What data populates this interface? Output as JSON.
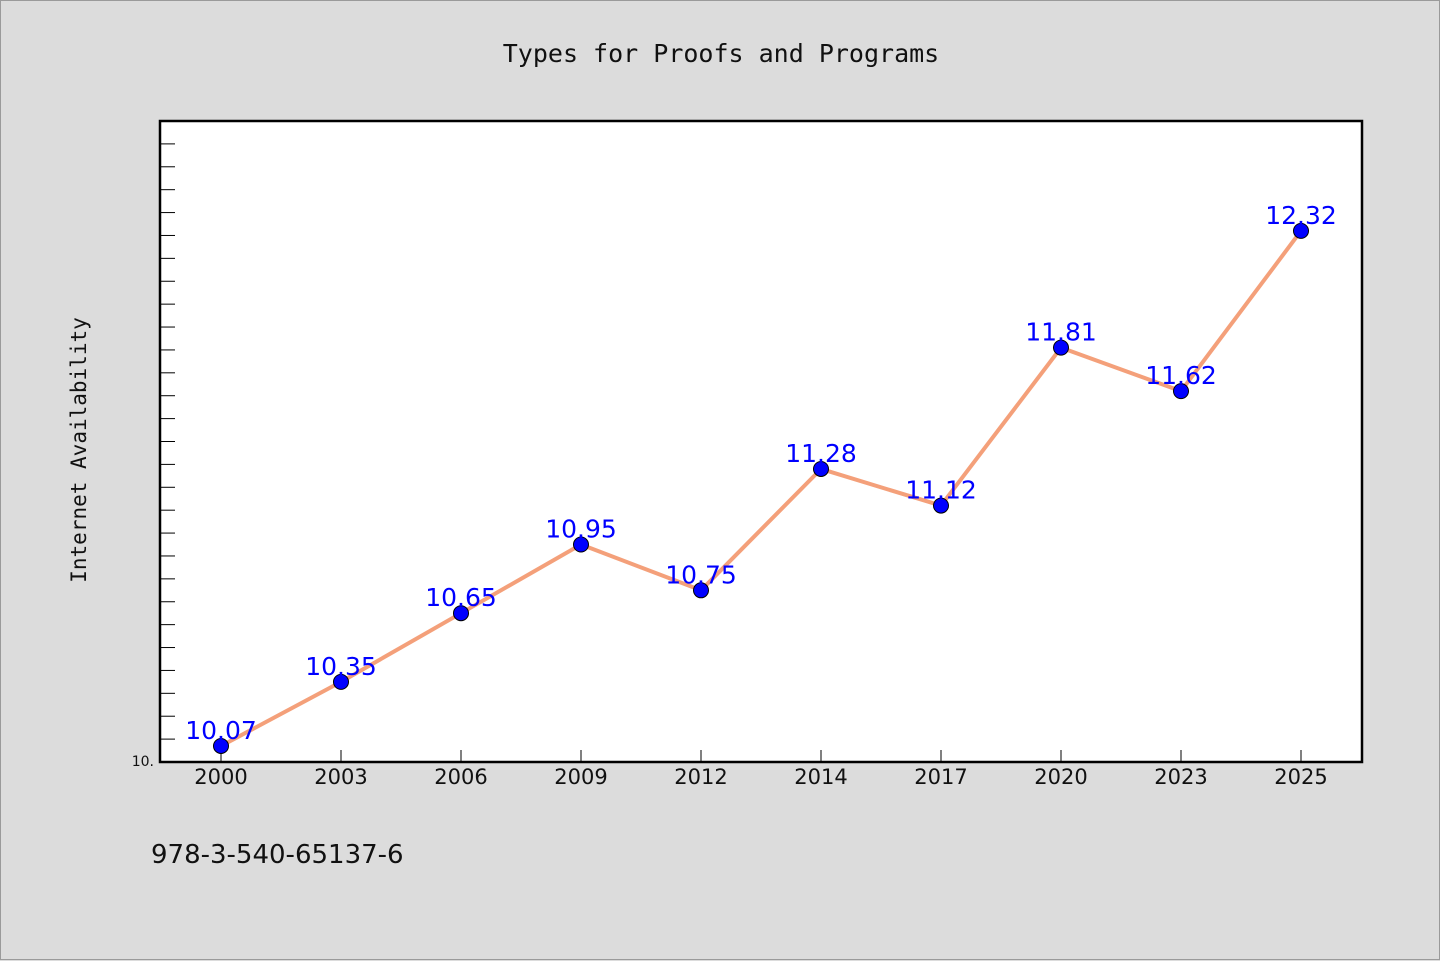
{
  "chart_data": {
    "type": "line",
    "title": "Types for Proofs and Programs",
    "ylabel": "Internet Availability",
    "xlabel": "",
    "categories": [
      "2000",
      "2003",
      "2006",
      "2009",
      "2012",
      "2014",
      "2017",
      "2020",
      "2023",
      "2025"
    ],
    "series": [
      {
        "values": [
          10.07,
          10.35,
          10.65,
          10.95,
          10.75,
          11.28,
          11.12,
          11.81,
          11.62,
          12.32
        ],
        "data_labels": [
          "10.07",
          "10.35",
          "10.65",
          "10.95",
          "10.75",
          "11.28",
          "11.12",
          "11.81",
          "11.62",
          "12.32"
        ]
      }
    ],
    "y_tick_labels": [
      "10."
    ],
    "ylim": [
      10.0,
      12.8
    ],
    "grid": false,
    "line_color": "#f4a07a",
    "marker_color": "#0000ff",
    "label_color": "#0000ff",
    "background_color": "#dcdcdc",
    "plot_background": "#ffffff"
  },
  "footnote": "978-3-540-65137-6"
}
